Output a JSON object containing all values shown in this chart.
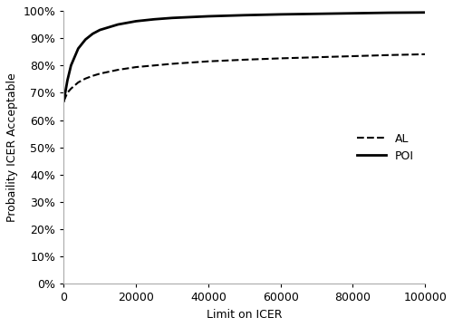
{
  "title": "",
  "xlabel": "Limit on ICER",
  "ylabel": "Probaility ICER Acceptable",
  "xlim": [
    0,
    100000
  ],
  "ylim": [
    0.0,
    1.0
  ],
  "yticks": [
    0.0,
    0.1,
    0.2,
    0.3,
    0.4,
    0.5,
    0.6,
    0.7,
    0.8,
    0.9,
    1.0
  ],
  "xticks": [
    0,
    20000,
    40000,
    60000,
    80000,
    100000
  ],
  "al_x": [
    0,
    1000,
    2000,
    4000,
    6000,
    8000,
    10000,
    15000,
    20000,
    25000,
    30000,
    40000,
    50000,
    60000,
    70000,
    80000,
    90000,
    100000
  ],
  "al_y": [
    0.67,
    0.7,
    0.715,
    0.738,
    0.752,
    0.762,
    0.77,
    0.784,
    0.794,
    0.8,
    0.806,
    0.815,
    0.821,
    0.826,
    0.83,
    0.834,
    0.838,
    0.841
  ],
  "poi_x": [
    0,
    1000,
    2000,
    4000,
    6000,
    8000,
    10000,
    15000,
    20000,
    25000,
    30000,
    40000,
    50000,
    60000,
    70000,
    80000,
    90000,
    100000
  ],
  "poi_y": [
    0.67,
    0.745,
    0.8,
    0.862,
    0.895,
    0.916,
    0.93,
    0.95,
    0.962,
    0.969,
    0.974,
    0.98,
    0.984,
    0.987,
    0.989,
    0.991,
    0.993,
    0.994
  ],
  "al_color": "#000000",
  "poi_color": "#000000",
  "al_linestyle": "--",
  "poi_linestyle": "-",
  "al_linewidth": 1.5,
  "poi_linewidth": 2.0,
  "legend_labels": [
    "AL",
    "POI"
  ],
  "legend_loc": "center right",
  "background_color": "#ffffff",
  "grid": false,
  "font_size": 9,
  "tick_fontsize": 9
}
